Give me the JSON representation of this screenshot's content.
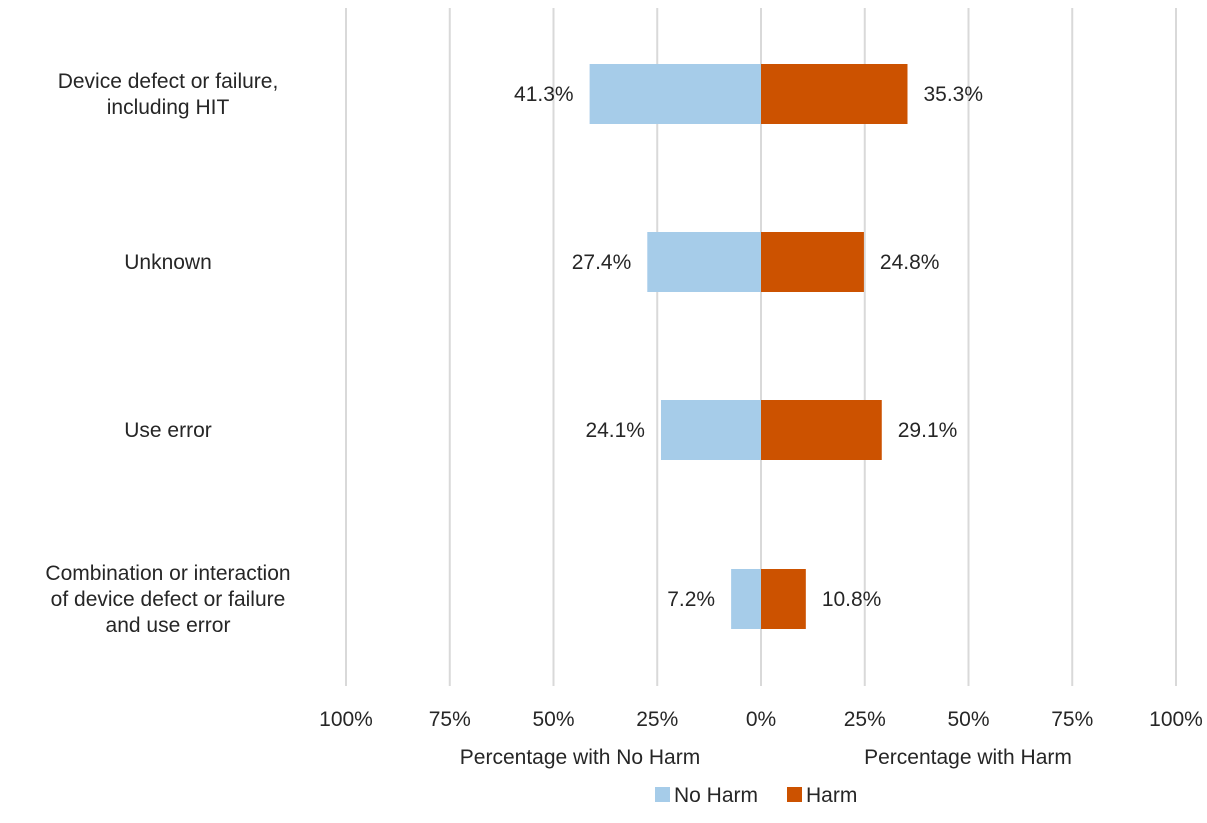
{
  "chart_data": {
    "type": "bar",
    "orientation": "horizontal-diverging",
    "categories": [
      [
        "Device defect or failure,",
        "including HIT"
      ],
      [
        "Unknown"
      ],
      [
        "Use error"
      ],
      [
        "Combination or interaction",
        "of device defect or failure",
        "and use error"
      ]
    ],
    "series": [
      {
        "name": "No Harm",
        "color": "#a6cce9",
        "direction": "left",
        "values": [
          41.3,
          27.4,
          24.1,
          7.2
        ],
        "labels": [
          "41.3%",
          "27.4%",
          "24.1%",
          "7.2%"
        ]
      },
      {
        "name": "Harm",
        "color": "#cc5200",
        "direction": "right",
        "values": [
          35.3,
          24.8,
          29.1,
          10.8
        ],
        "labels": [
          "35.3%",
          "24.8%",
          "29.1%",
          "10.8%"
        ]
      }
    ],
    "xlim": [
      -100,
      100
    ],
    "x_ticks": [
      -100,
      -75,
      -50,
      -25,
      0,
      25,
      50,
      75,
      100
    ],
    "x_tick_labels": [
      "100%",
      "75%",
      "50%",
      "25%",
      "0%",
      "25%",
      "50%",
      "75%",
      "100%"
    ],
    "xlabel_left": "Percentage  with No Harm",
    "xlabel_right": "Percentage  with Harm",
    "grid": true,
    "grid_color": "#d9d9d9",
    "legend": {
      "position": "bottom",
      "entries": [
        "No Harm",
        "Harm"
      ]
    }
  }
}
